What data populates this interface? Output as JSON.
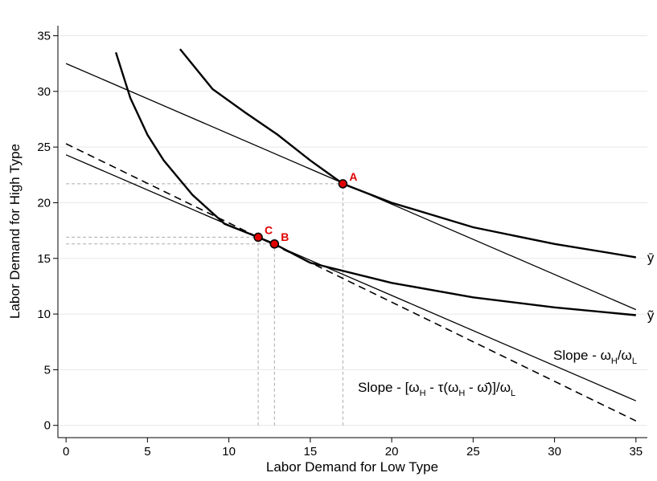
{
  "chart_data": {
    "type": "line",
    "x_label": "Labor Demand for Low Type",
    "y_label": "Labor Demand for High Type",
    "xlim": [
      -0.5,
      35.7
    ],
    "ylim": [
      -1.1,
      35.9
    ],
    "xticks": [
      0,
      5,
      10,
      15,
      20,
      25,
      30,
      35
    ],
    "yticks": [
      0,
      5,
      10,
      15,
      20,
      25,
      30,
      35
    ],
    "grid": true,
    "series": [
      {
        "name": "ȳ",
        "color": "#000000",
        "width": 2.4,
        "dashed": false,
        "x": [
          7,
          9,
          11,
          13,
          15,
          17,
          20,
          25,
          30,
          35
        ],
        "values": [
          33.8,
          30.2,
          28.1,
          26.1,
          23.8,
          21.7,
          20.0,
          17.8,
          16.3,
          15.1
        ]
      },
      {
        "name": "ỹ",
        "color": "#000000",
        "width": 2.4,
        "dashed": false,
        "x": [
          3.06,
          3.95,
          5,
          6,
          7.76,
          9.74,
          11.8,
          12.8,
          15,
          20,
          25,
          30,
          35
        ],
        "values": [
          33.5,
          29.4,
          26.1,
          23.8,
          20.7,
          18.1,
          16.9,
          16.3,
          14.6,
          12.8,
          11.5,
          10.6,
          9.9
        ]
      },
      {
        "color": "#000000",
        "width": 1.3,
        "dashed": false,
        "x": [
          0,
          35
        ],
        "values": [
          32.5,
          10.4
        ]
      },
      {
        "color": "#000000",
        "width": 1.3,
        "dashed": false,
        "x": [
          0,
          35
        ],
        "values": [
          24.3,
          2.2
        ]
      },
      {
        "color": "#000000",
        "width": 1.6,
        "dashed": true,
        "x": [
          0,
          35
        ],
        "values": [
          25.3,
          0.4
        ]
      }
    ],
    "points": {
      "color": "#e00000",
      "labels": [
        "A",
        "B",
        "C"
      ],
      "x": [
        17,
        12.8,
        11.8
      ],
      "y": [
        21.7,
        16.3,
        16.9
      ]
    },
    "annotations": [
      {
        "text": [
          "Slope - ω",
          "H",
          "/ω",
          "L"
        ]
      },
      {
        "text": [
          "Slope  - [ω",
          "H",
          " - τ(ω",
          "H",
          " - ω̄)]/ω",
          "L"
        ]
      }
    ]
  }
}
